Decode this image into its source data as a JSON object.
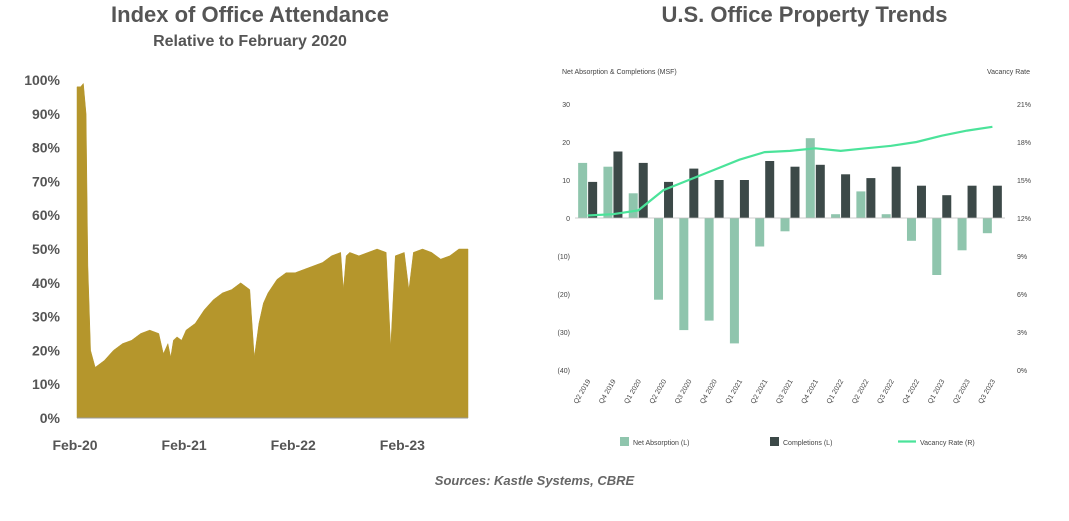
{
  "left_chart": {
    "title": "Index of Office Attendance",
    "subtitle": "Relative to February 2020",
    "fill_color": "#b5962c",
    "y_ticks": [
      "0%",
      "10%",
      "20%",
      "30%",
      "40%",
      "50%",
      "60%",
      "70%",
      "80%",
      "90%",
      "100%"
    ],
    "x_ticks": [
      "Feb-20",
      "Feb-21",
      "Feb-22",
      "Feb-23"
    ]
  },
  "right_chart": {
    "title": "U.S. Office Property Trends",
    "left_axis_label": "Net Absorption & Completions (MSF)",
    "right_axis_label": "Vacancy Rate",
    "left_ticks": [
      "30",
      "20",
      "10",
      "0",
      "(10)",
      "(20)",
      "(30)",
      "(40)"
    ],
    "right_ticks": [
      "21%",
      "18%",
      "15%",
      "12%",
      "9%",
      "6%",
      "3%",
      "0%"
    ],
    "legend": [
      "Net Absorption (L)",
      "Completions (L)",
      "Vacancy Rate (R)"
    ]
  },
  "sources": "Sources: Kastle Systems, CBRE",
  "chart_data": [
    {
      "type": "area",
      "title": "Index of Office Attendance",
      "subtitle": "Relative to February 2020",
      "x_unit": "months since Feb-20",
      "x_tick_labels": [
        "Feb-20",
        "Feb-21",
        "Feb-22",
        "Feb-23"
      ],
      "x": [
        0,
        0.4,
        0.7,
        1.0,
        1.2,
        1.5,
        2,
        3,
        4,
        5,
        6,
        7,
        8,
        9,
        9.5,
        10,
        10.3,
        10.6,
        11,
        11.5,
        12,
        13,
        14,
        15,
        16,
        17,
        18,
        19,
        19.5,
        20,
        20.5,
        21,
        22,
        23,
        24,
        25,
        26,
        27,
        28,
        29,
        29.3,
        29.6,
        30,
        31,
        32,
        33,
        34,
        34.5,
        35,
        36,
        36.5,
        37,
        38,
        39,
        40,
        41,
        42,
        43
      ],
      "y": [
        98,
        98,
        99,
        90,
        45,
        20,
        15,
        17,
        20,
        22,
        23,
        25,
        26,
        25,
        19,
        22,
        18,
        23,
        24,
        23,
        26,
        28,
        32,
        35,
        37,
        38,
        40,
        38,
        18,
        28,
        34,
        37,
        41,
        43,
        43,
        44,
        45,
        46,
        48,
        49,
        38,
        48,
        49,
        48,
        49,
        50,
        49,
        21,
        48,
        49,
        38,
        49,
        50,
        49,
        47,
        48,
        50,
        50
      ],
      "ylim": [
        0,
        100
      ]
    },
    {
      "type": "bar",
      "title": "U.S. Office Property Trends",
      "categories": [
        "Q2 2019",
        "Q4 2019",
        "Q1 2020",
        "Q2 2020",
        "Q3 2020",
        "Q4 2020",
        "Q1 2021",
        "Q2 2021",
        "Q3 2021",
        "Q4 2021",
        "Q1 2022",
        "Q2 2022",
        "Q3 2022",
        "Q4 2022",
        "Q1 2023",
        "Q2 2023",
        "Q3 2023"
      ],
      "ylabel": "Net Absorption & Completions (MSF)",
      "y2label": "Vacancy Rate",
      "ylim": [
        -40,
        30
      ],
      "y2lim": [
        0,
        21
      ],
      "series": [
        {
          "name": "Net Absorption (L)",
          "axis": "left",
          "type": "bar",
          "color": "#8fc5ad",
          "values": [
            14.5,
            13.5,
            6.5,
            -21.5,
            -29.5,
            -27,
            -33,
            -7.5,
            -3.5,
            21,
            1,
            7,
            1,
            -6,
            -15,
            -8.5,
            -4
          ]
        },
        {
          "name": "Completions (L)",
          "axis": "left",
          "type": "bar",
          "color": "#3c4948",
          "values": [
            9.5,
            17.5,
            14.5,
            9.5,
            13,
            10,
            10,
            15,
            13.5,
            14,
            11.5,
            10.5,
            13.5,
            8.5,
            6,
            8.5,
            8.5
          ]
        },
        {
          "name": "Vacancy Rate (R)",
          "axis": "right",
          "type": "line",
          "color": "#4be39a",
          "values": [
            12.2,
            12.3,
            12.6,
            14.2,
            15.0,
            15.8,
            16.6,
            17.2,
            17.3,
            17.5,
            17.3,
            17.5,
            17.7,
            18.0,
            18.5,
            18.9,
            19.2
          ]
        }
      ]
    }
  ]
}
